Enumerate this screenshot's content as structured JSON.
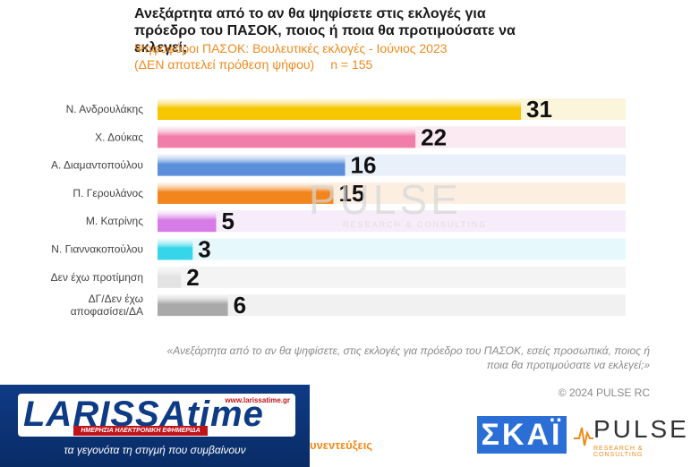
{
  "chart_data": {
    "type": "bar",
    "orientation": "horizontal",
    "title": "Ανεξάρτητα από το αν θα ψηφίσετε στις εκλογές για πρόεδρο του ΠΑΣΟΚ, ποιος ή ποια θα προτιμούσατε να εκλεγεί;",
    "subtitle_line1": "Ψηφοφόροι ΠΑΣΟΚ: Βουλευτικές εκλογές - Ιούνιος 2023",
    "subtitle_line2": "(ΔΕΝ αποτελεί πρόθεση ψήφου)",
    "sample": "n = 155",
    "categories": [
      "Ν. Ανδρουλάκης",
      "Χ. Δούκας",
      "Α. Διαμαντοπούλου",
      "Π. Γερουλάνος",
      "Μ. Κατρίνης",
      "Ν. Γιαννακοπούλου",
      "Δεν έχω προτίμηση",
      "ΔΓ/Δεν έχω αποφασίσει/ΔΑ"
    ],
    "values": [
      31,
      22,
      16,
      15,
      5,
      3,
      2,
      6
    ],
    "colors": [
      "#f7c600",
      "#f17ea9",
      "#5b8fdc",
      "#f2861e",
      "#d77be6",
      "#35d6ea",
      "#e3e3e3",
      "#a9a9a9"
    ],
    "track_colors": [
      "#fbf5dc",
      "#fbeaf1",
      "#eaf0fa",
      "#fcefe2",
      "#f6ecfa",
      "#e6f8fb",
      "#f4f4f4",
      "#f1f1f1"
    ],
    "xlim": [
      0,
      31
    ],
    "grid": false,
    "legend": "none"
  },
  "question_note": "«Ανεξάρτητα από το αν θα ψηφίσετε, στις εκλογές για πρόεδρο του ΠΑΣΟΚ, εσείς προσωπικά, ποιος ή ποια θα προτιμούσατε να εκλεγεί;»",
  "copyright": "© 2024 PULSE RC",
  "watermark": {
    "brand": "PULSE",
    "tagline": "RESEARCH & CONSULTING"
  },
  "banner": {
    "logo": "LARISSAtime",
    "url": "www.larissatime.gr",
    "strip": "ΗΜΕΡΗΣΙΑ ΗΛΕΚΤΡΟΝΙΚΗ ΕΦΗΜΕΡΙΔΑ",
    "tagline": "τα γεγονότα τη στιγμή που συμβαίνουν"
  },
  "footer_text": "υνεντεύξεις",
  "broadcaster_logo": "ΣΚΑΪ",
  "pollster_logo": {
    "name": "PULSE",
    "sub": "RESEARCH & CONSULTING"
  }
}
